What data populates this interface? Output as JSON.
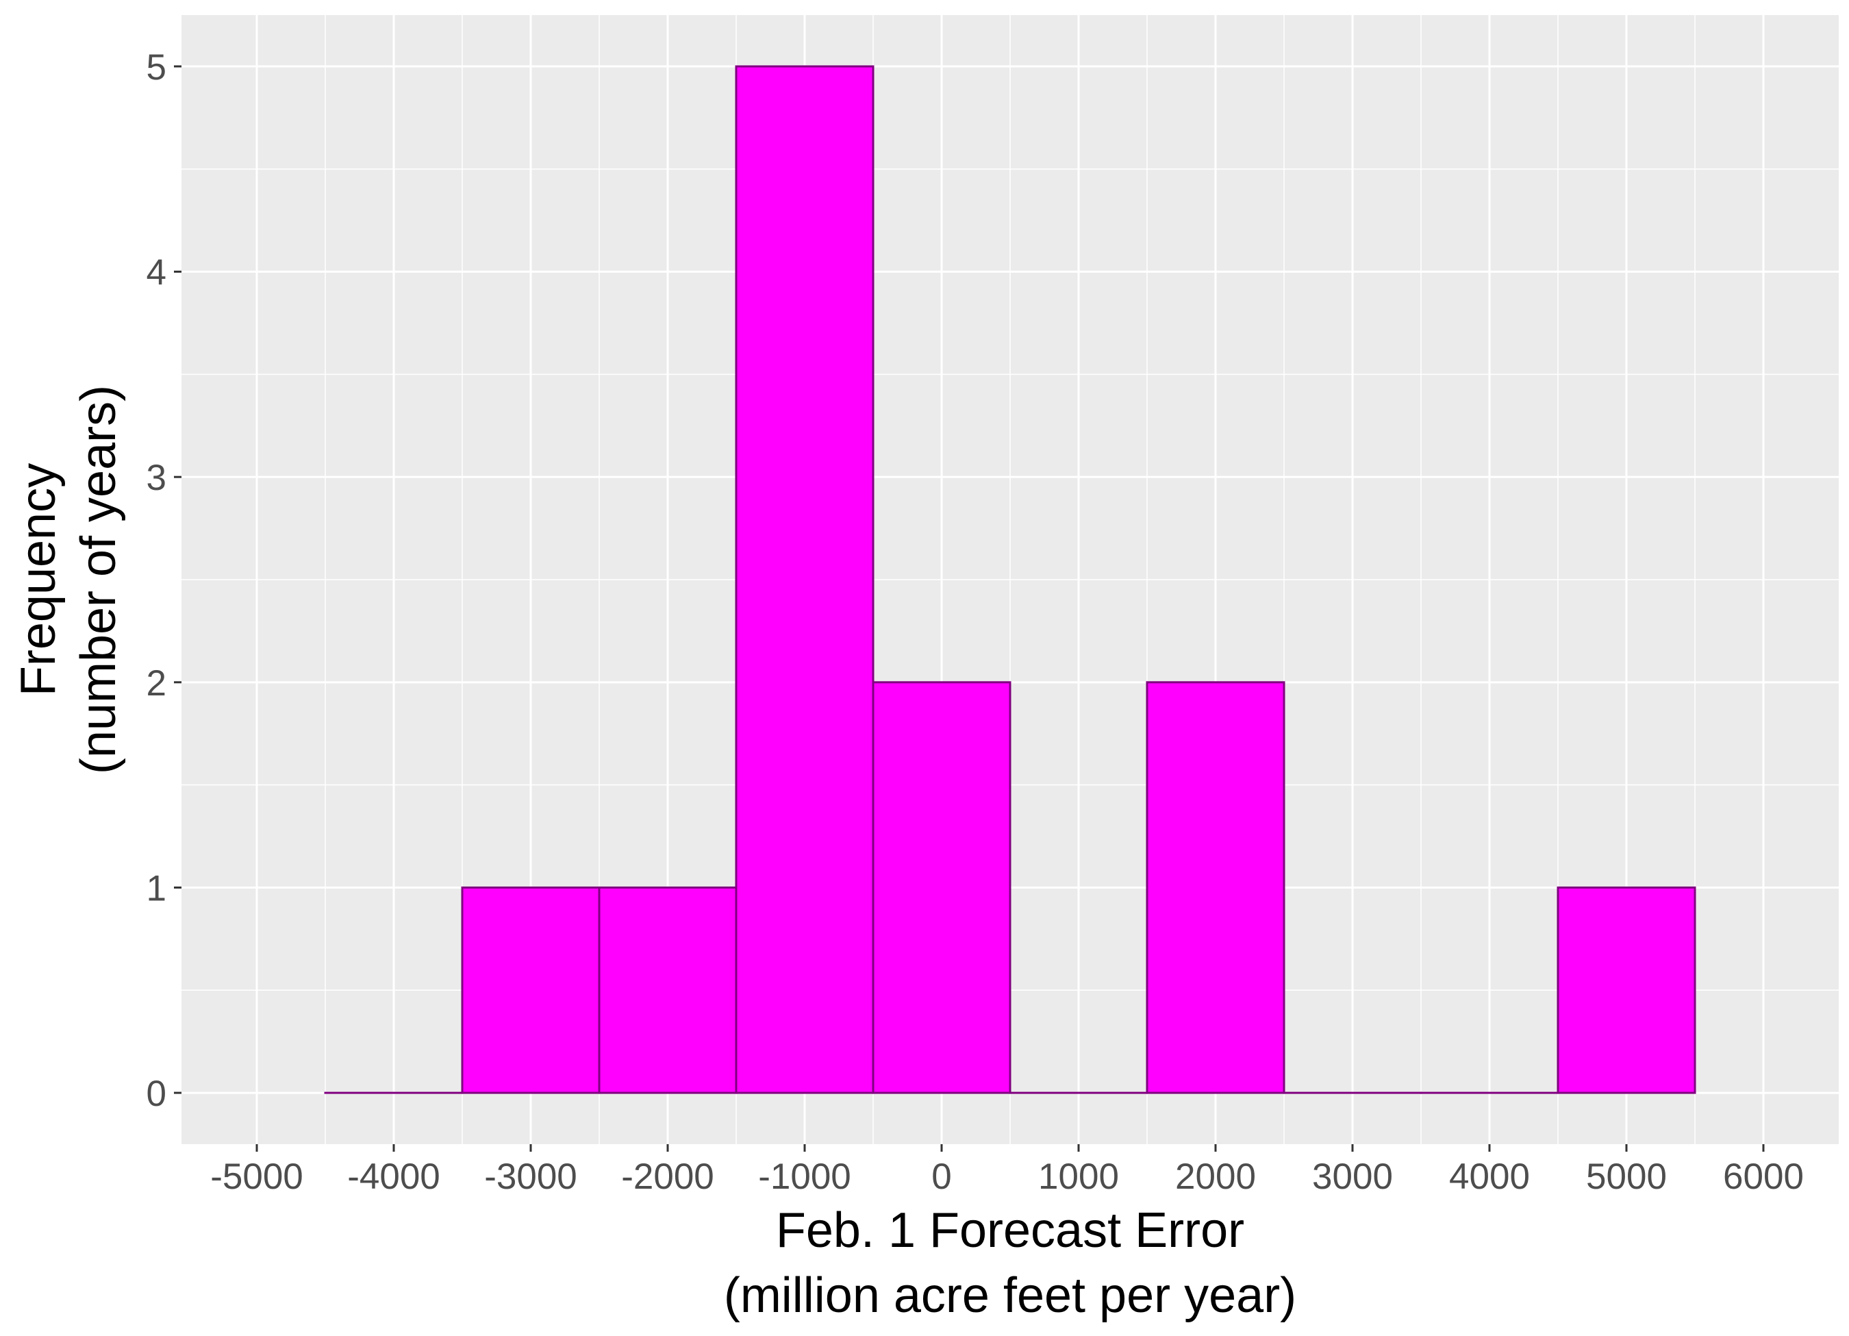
{
  "chart_data": {
    "type": "bar",
    "subtype": "histogram",
    "bin_width": 1000,
    "bins": [
      {
        "start": -4500,
        "end": -3500,
        "count": 0
      },
      {
        "start": -3500,
        "end": -2500,
        "count": 1
      },
      {
        "start": -2500,
        "end": -1500,
        "count": 1
      },
      {
        "start": -1500,
        "end": -500,
        "count": 5
      },
      {
        "start": -500,
        "end": 500,
        "count": 2
      },
      {
        "start": 500,
        "end": 1500,
        "count": 0
      },
      {
        "start": 1500,
        "end": 2500,
        "count": 2
      },
      {
        "start": 2500,
        "end": 3500,
        "count": 0
      },
      {
        "start": 3500,
        "end": 4500,
        "count": 0
      },
      {
        "start": 4500,
        "end": 5500,
        "count": 1
      }
    ],
    "xlabel": [
      "Feb. 1 Forecast Error",
      "(million acre feet per year)"
    ],
    "ylabel": [
      "Frequency",
      "(number of years)"
    ],
    "xlim": [
      -5550,
      6550
    ],
    "ylim": [
      -0.25,
      5.25
    ],
    "x_ticks": [
      -5000,
      -4000,
      -3000,
      -2000,
      -1000,
      0,
      1000,
      2000,
      3000,
      4000,
      5000,
      6000
    ],
    "x_tick_labels": [
      "-5000",
      "-4000",
      "-3000",
      "-2000",
      "-1000",
      "0",
      "1000",
      "2000",
      "3000",
      "4000",
      "5000",
      "6000"
    ],
    "y_ticks": [
      0,
      1,
      2,
      3,
      4,
      5
    ],
    "y_tick_labels": [
      "0",
      "1",
      "2",
      "3",
      "4",
      "5"
    ],
    "grid": true,
    "legend": "none",
    "colors": {
      "bar_fill": "#ff00ff",
      "bar_outline": "#800080",
      "panel_background": "#ebebeb",
      "grid": "#ffffff"
    }
  }
}
